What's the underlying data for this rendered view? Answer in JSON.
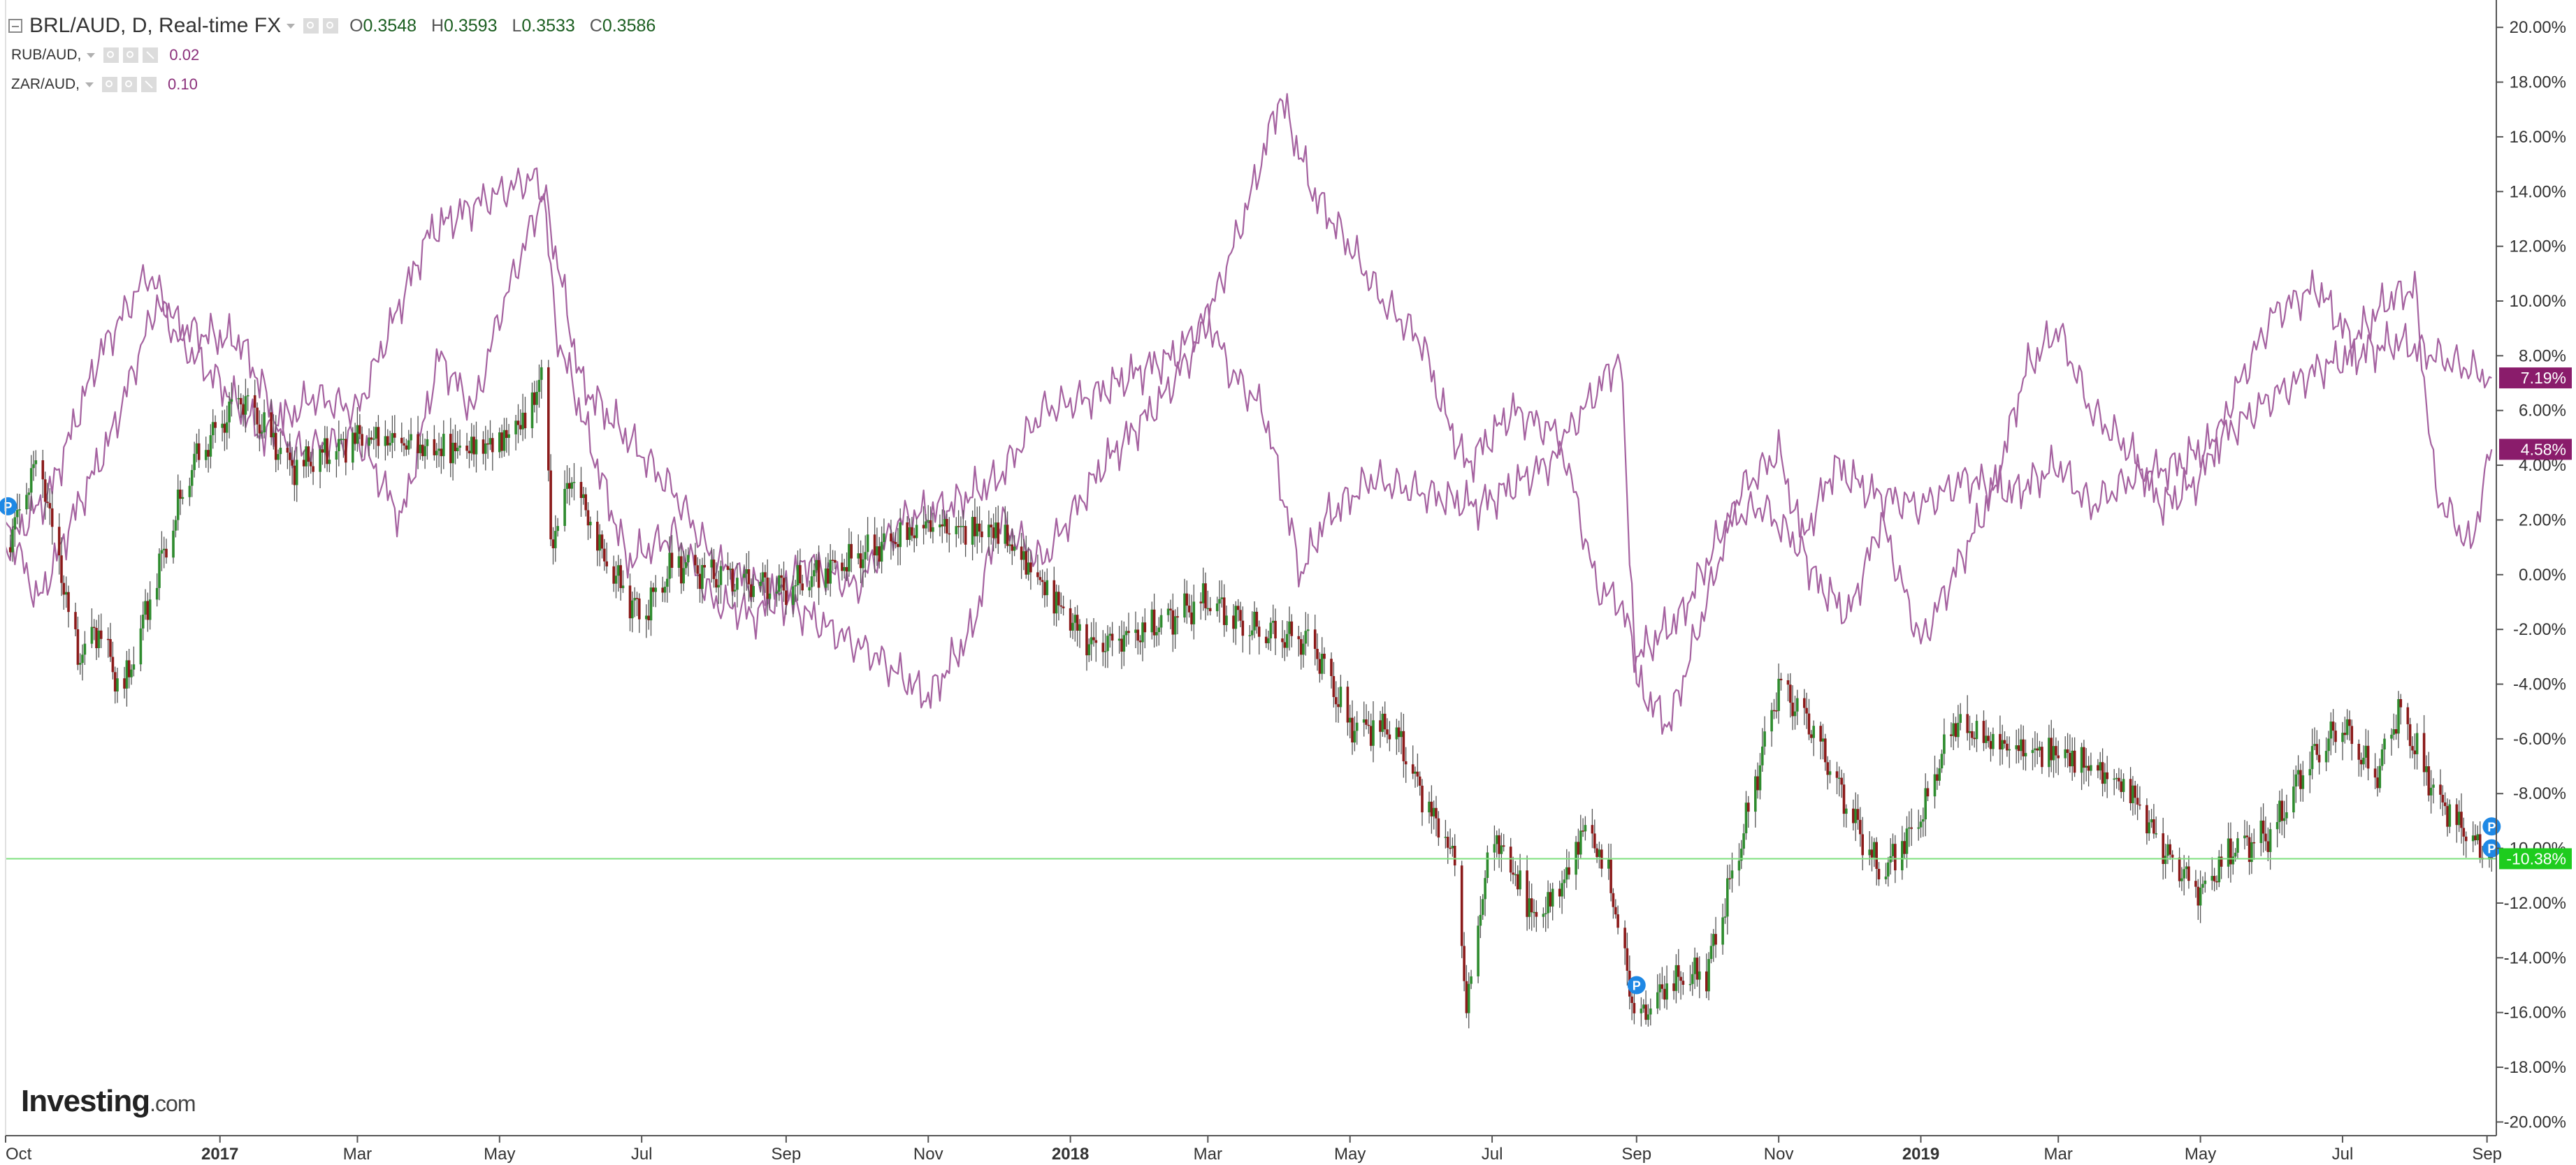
{
  "legend": {
    "main": {
      "symbol": "BRL/AUD, D, Real-time FX",
      "open_label": "O",
      "open": "0.3548",
      "high_label": "H",
      "high": "0.3593",
      "low_label": "L",
      "low": "0.3533",
      "close_label": "C",
      "close": "0.3586"
    },
    "compare": [
      {
        "symbol": "RUB/AUD,",
        "value": "0.02"
      },
      {
        "symbol": "ZAR/AUD,",
        "value": "0.10"
      }
    ]
  },
  "brand": {
    "name": "Investing",
    "suffix": ".com"
  },
  "colors": {
    "up": "#2e8b2e",
    "down": "#8b1a1a",
    "compare": "#a562a0",
    "compare_badge": "#8a1c6b",
    "current_line": "#7fe07f",
    "current_badge": "#1ecc1e",
    "marker": "#1e88e5"
  },
  "chart_data": {
    "type": "line",
    "title": "",
    "xlabel": "",
    "ylabel": "",
    "y_unit": "%",
    "ylim": [
      -20.5,
      21
    ],
    "y_ticks": [
      "20.00%",
      "18.00%",
      "16.00%",
      "14.00%",
      "12.00%",
      "10.00%",
      "8.00%",
      "6.00%",
      "4.00%",
      "2.00%",
      "0.00%",
      "-2.00%",
      "-4.00%",
      "-6.00%",
      "-8.00%",
      "-10.00%",
      "-12.00%",
      "-14.00%",
      "-16.00%",
      "-18.00%",
      "-20.00%"
    ],
    "x_ticks": [
      {
        "label": "Oct",
        "date": "2016-10-01",
        "bold": false
      },
      {
        "label": "2017",
        "date": "2017-01-01",
        "bold": true
      },
      {
        "label": "Mar",
        "date": "2017-03-01",
        "bold": false
      },
      {
        "label": "May",
        "date": "2017-05-01",
        "bold": false
      },
      {
        "label": "Jul",
        "date": "2017-07-01",
        "bold": false
      },
      {
        "label": "Sep",
        "date": "2017-09-01",
        "bold": false
      },
      {
        "label": "Nov",
        "date": "2017-11-01",
        "bold": false
      },
      {
        "label": "2018",
        "date": "2018-01-01",
        "bold": true
      },
      {
        "label": "Mar",
        "date": "2018-03-01",
        "bold": false
      },
      {
        "label": "May",
        "date": "2018-05-01",
        "bold": false
      },
      {
        "label": "Jul",
        "date": "2018-07-01",
        "bold": false
      },
      {
        "label": "Sep",
        "date": "2018-09-01",
        "bold": false
      },
      {
        "label": "Nov",
        "date": "2018-11-01",
        "bold": false
      },
      {
        "label": "2019",
        "date": "2019-01-01",
        "bold": true
      },
      {
        "label": "Mar",
        "date": "2019-03-01",
        "bold": false
      },
      {
        "label": "May",
        "date": "2019-05-01",
        "bold": false
      },
      {
        "label": "Jul",
        "date": "2019-07-01",
        "bold": false
      },
      {
        "label": "Sep",
        "date": "2019-09-01",
        "bold": false
      }
    ],
    "x_range": [
      "2016-10-01",
      "2019-09-05"
    ],
    "current_line_value": -10.38,
    "series": [
      {
        "name": "BRL/AUD",
        "style": "candlestick",
        "badge": "-10.38%",
        "x": [
          "2016-10-01",
          "2016-10-15",
          "2016-11-01",
          "2016-11-10",
          "2016-11-20",
          "2016-12-05",
          "2016-12-20",
          "2017-01-10",
          "2017-02-01",
          "2017-03-01",
          "2017-04-01",
          "2017-05-01",
          "2017-05-15",
          "2017-05-20",
          "2017-05-23",
          "2017-06-01",
          "2017-06-15",
          "2017-07-01",
          "2017-07-15",
          "2017-08-01",
          "2017-09-01",
          "2017-10-01",
          "2017-11-01",
          "2017-12-01",
          "2017-12-20",
          "2018-01-10",
          "2018-02-01",
          "2018-03-01",
          "2018-03-20",
          "2018-04-15",
          "2018-05-01",
          "2018-05-20",
          "2018-06-01",
          "2018-06-15",
          "2018-06-20",
          "2018-07-01",
          "2018-07-20",
          "2018-08-01",
          "2018-08-10",
          "2018-08-20",
          "2018-09-01",
          "2018-09-15",
          "2018-10-01",
          "2018-10-15",
          "2018-11-01",
          "2018-11-15",
          "2018-12-01",
          "2018-12-15",
          "2019-01-01",
          "2019-01-15",
          "2019-02-01",
          "2019-03-01",
          "2019-04-01",
          "2019-04-15",
          "2019-05-01",
          "2019-05-15",
          "2019-06-01",
          "2019-06-15",
          "2019-07-01",
          "2019-07-15",
          "2019-07-25",
          "2019-08-10",
          "2019-08-25",
          "2019-09-03"
        ],
        "values": [
          1.0,
          4.5,
          -3.0,
          -2.0,
          -4.5,
          0.0,
          4.0,
          6.5,
          4.0,
          5.0,
          4.5,
          5.0,
          6.0,
          8.0,
          1.0,
          3.5,
          0.5,
          -1.5,
          0.5,
          0.0,
          -0.5,
          0.5,
          2.0,
          1.5,
          -0.5,
          -2.5,
          -2.0,
          -1.0,
          -2.0,
          -2.5,
          -5.5,
          -5.5,
          -8.0,
          -10.5,
          -16.0,
          -9.5,
          -12.5,
          -11.0,
          -9.0,
          -11.0,
          -16.5,
          -15.0,
          -14.5,
          -10.0,
          -4.0,
          -5.5,
          -8.5,
          -11.0,
          -9.0,
          -5.5,
          -6.0,
          -6.5,
          -8.0,
          -10.0,
          -11.5,
          -10.0,
          -9.5,
          -7.0,
          -5.5,
          -7.5,
          -5.0,
          -8.0,
          -9.5,
          -10.38
        ]
      },
      {
        "name": "RUB/AUD",
        "style": "line",
        "badge": "7.19%",
        "x": [
          "2016-10-01",
          "2016-10-15",
          "2016-11-01",
          "2016-11-15",
          "2016-12-05",
          "2016-12-15",
          "2017-01-01",
          "2017-01-20",
          "2017-02-10",
          "2017-03-01",
          "2017-03-15",
          "2017-04-01",
          "2017-04-20",
          "2017-05-15",
          "2017-05-20",
          "2017-05-25",
          "2017-06-10",
          "2017-06-25",
          "2017-07-15",
          "2017-08-01",
          "2017-08-20",
          "2017-09-10",
          "2017-10-01",
          "2017-10-20",
          "2017-11-10",
          "2017-12-01",
          "2017-12-20",
          "2018-01-10",
          "2018-02-01",
          "2018-02-15",
          "2018-03-01",
          "2018-03-10",
          "2018-03-25",
          "2018-04-10",
          "2018-04-20",
          "2018-05-10",
          "2018-06-01",
          "2018-06-25",
          "2018-07-15",
          "2018-08-01",
          "2018-08-15",
          "2018-08-25",
          "2018-09-01",
          "2018-09-20",
          "2018-10-10",
          "2018-10-25",
          "2018-11-10",
          "2018-11-25",
          "2018-12-10",
          "2019-01-01",
          "2019-01-20",
          "2019-02-10",
          "2019-03-01",
          "2019-03-15",
          "2019-04-01",
          "2019-04-20",
          "2019-05-10",
          "2019-06-01",
          "2019-06-20",
          "2019-07-05",
          "2019-07-25",
          "2019-08-10",
          "2019-08-25",
          "2019-09-03"
        ],
        "values": [
          2.0,
          -1.0,
          2.5,
          5.0,
          10.0,
          8.5,
          7.0,
          5.0,
          6.5,
          6.0,
          9.0,
          12.5,
          13.5,
          14.5,
          14.0,
          9.0,
          4.5,
          0.5,
          1.5,
          -1.0,
          -1.5,
          0.5,
          -0.5,
          2.0,
          2.5,
          3.5,
          6.0,
          6.5,
          7.5,
          8.0,
          9.5,
          7.5,
          6.0,
          0.0,
          2.0,
          3.5,
          3.0,
          2.5,
          3.5,
          4.5,
          -0.5,
          -1.0,
          -3.0,
          -1.5,
          2.0,
          2.5,
          1.0,
          4.0,
          3.0,
          2.5,
          3.5,
          3.0,
          4.0,
          2.5,
          3.5,
          4.0,
          5.0,
          6.5,
          7.5,
          8.0,
          8.5,
          8.0,
          7.5,
          7.19
        ]
      },
      {
        "name": "ZAR/AUD",
        "style": "line",
        "badge": "4.58%",
        "x": [
          "2016-10-01",
          "2016-10-20",
          "2016-11-10",
          "2016-12-01",
          "2016-12-15",
          "2017-01-10",
          "2017-02-01",
          "2017-03-01",
          "2017-03-20",
          "2017-04-05",
          "2017-04-20",
          "2017-05-01",
          "2017-05-20",
          "2017-06-05",
          "2017-06-25",
          "2017-07-15",
          "2017-08-01",
          "2017-09-01",
          "2017-09-20",
          "2017-10-10",
          "2017-11-01",
          "2017-11-20",
          "2017-12-01",
          "2017-12-20",
          "2018-01-15",
          "2018-02-10",
          "2018-02-25",
          "2018-03-10",
          "2018-03-20",
          "2018-04-01",
          "2018-04-15",
          "2018-05-01",
          "2018-05-15",
          "2018-06-01",
          "2018-06-10",
          "2018-06-20",
          "2018-07-10",
          "2018-08-01",
          "2018-08-25",
          "2018-09-01",
          "2018-09-15",
          "2018-10-01",
          "2018-10-15",
          "2018-11-01",
          "2018-11-15",
          "2018-12-01",
          "2018-12-15",
          "2019-01-01",
          "2019-01-15",
          "2019-02-01",
          "2019-02-15",
          "2019-03-01",
          "2019-03-15",
          "2019-04-01",
          "2019-04-15",
          "2019-05-01",
          "2019-05-15",
          "2019-06-01",
          "2019-06-20",
          "2019-07-05",
          "2019-07-20",
          "2019-08-01",
          "2019-08-10",
          "2019-08-25",
          "2019-09-03"
        ],
        "values": [
          1.0,
          3.0,
          8.0,
          11.0,
          9.0,
          8.5,
          4.5,
          5.0,
          2.0,
          8.0,
          6.0,
          9.5,
          14.0,
          7.0,
          5.0,
          3.0,
          0.5,
          -1.0,
          -2.0,
          -3.0,
          -4.5,
          -2.0,
          2.0,
          0.5,
          4.0,
          6.5,
          8.5,
          11.5,
          14.0,
          17.5,
          14.0,
          12.0,
          10.0,
          8.5,
          6.0,
          4.0,
          6.0,
          5.0,
          8.0,
          -4.0,
          -5.5,
          -1.0,
          3.0,
          4.5,
          0.0,
          -1.5,
          2.0,
          -2.5,
          0.0,
          3.0,
          7.5,
          9.0,
          6.0,
          4.5,
          2.5,
          3.5,
          6.5,
          9.5,
          10.5,
          8.5,
          10.0,
          10.5,
          3.0,
          1.0,
          4.58
        ]
      }
    ],
    "markers": [
      {
        "label": "P",
        "date": "2016-10-02",
        "value": 2.5
      },
      {
        "label": "P",
        "date": "2018-09-01",
        "value": -15.0
      },
      {
        "label": "P",
        "date": "2019-09-03",
        "value": -9.2
      },
      {
        "label": "P",
        "date": "2019-09-03",
        "value": -10.0
      }
    ]
  }
}
